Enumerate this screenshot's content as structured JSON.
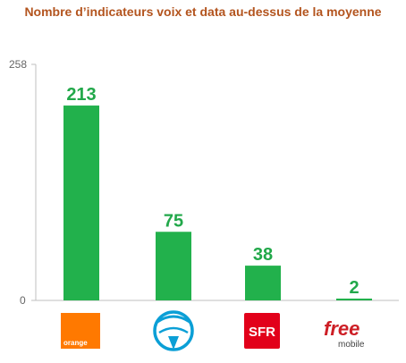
{
  "chart_data": {
    "type": "bar",
    "title": "Nombre d’indicateurs voix et data au-dessus de la moyenne",
    "categories": [
      "Orange",
      "Bouygues Telecom",
      "SFR",
      "Free Mobile"
    ],
    "values": [
      213,
      75,
      38,
      2
    ],
    "ylim": [
      0,
      258
    ],
    "y_ticks": [
      "258",
      "0"
    ],
    "grid": false,
    "bar_color": "#22b14c",
    "label_color": "#22a84a"
  },
  "logos": {
    "orange": {
      "icon": "orange-logo-icon",
      "text": "orange",
      "color": "#ff7900"
    },
    "bouygues": {
      "icon": "bouygues-telecom-logo-icon",
      "color": "#0b9fd6"
    },
    "sfr": {
      "icon": "sfr-logo-icon",
      "text": "SFR",
      "color": "#e2001a"
    },
    "free": {
      "icon": "free-mobile-logo-icon",
      "text": "free",
      "subtext": "mobile",
      "color": "#cd1e25"
    }
  }
}
